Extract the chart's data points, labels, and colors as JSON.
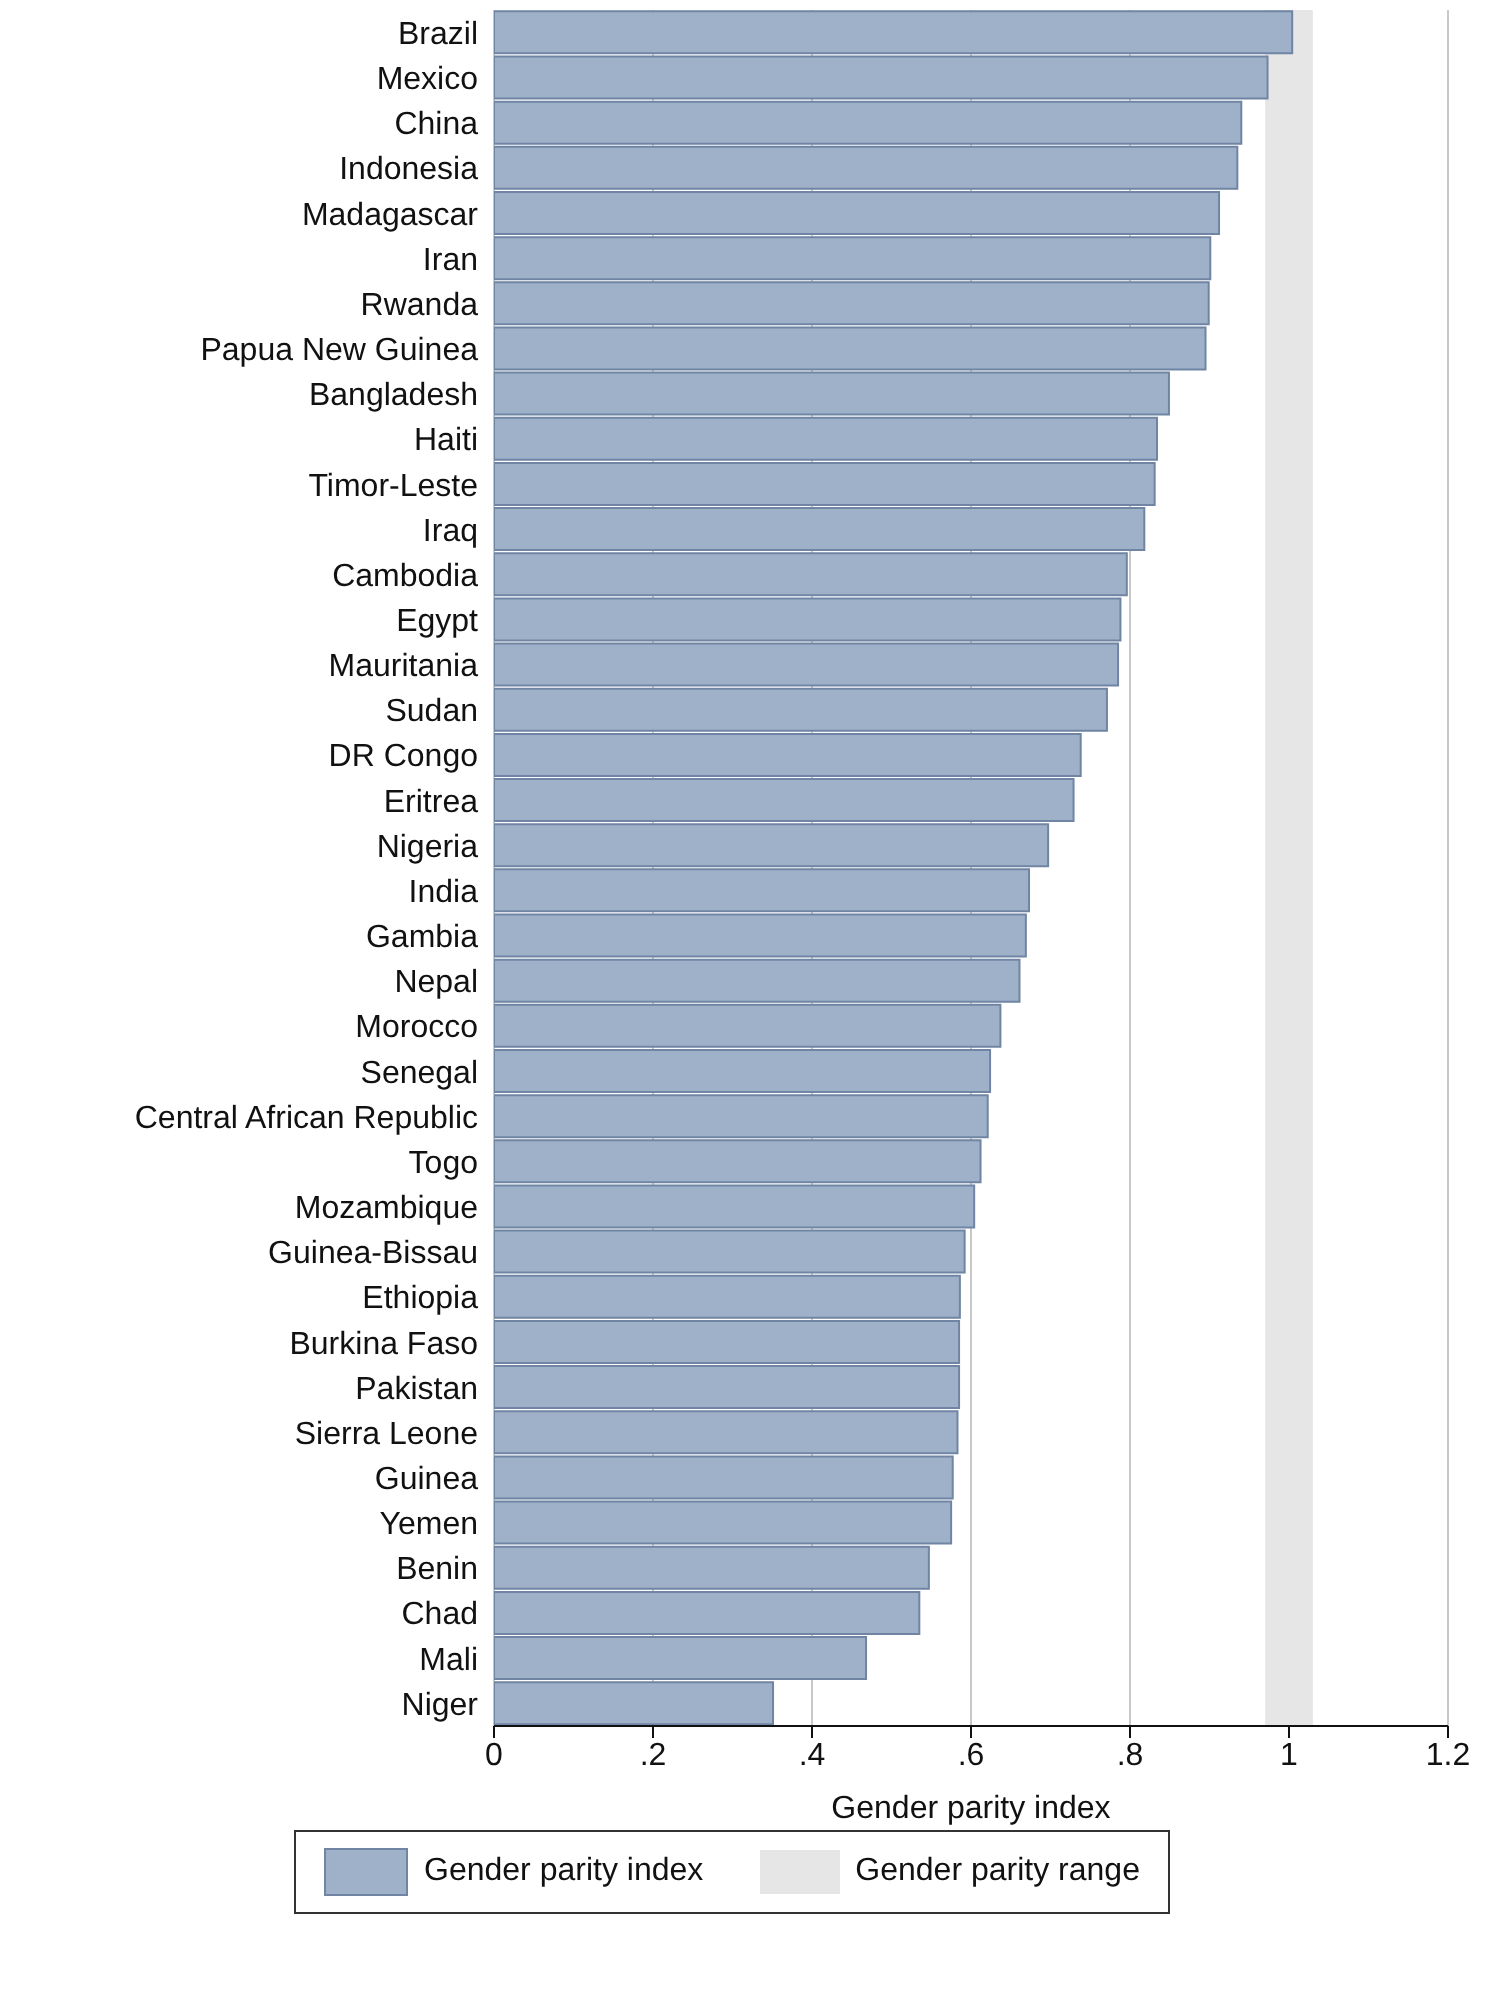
{
  "chart_data": {
    "type": "bar",
    "orientation": "horizontal",
    "xlabel": "Gender parity index",
    "categories": [
      "Brazil",
      "Mexico",
      "China",
      "Indonesia",
      "Madagascar",
      "Iran",
      "Rwanda",
      "Papua New Guinea",
      "Bangladesh",
      "Haiti",
      "Timor-Leste",
      "Iraq",
      "Cambodia",
      "Egypt",
      "Mauritania",
      "Sudan",
      "DR Congo",
      "Eritrea",
      "Nigeria",
      "India",
      "Gambia",
      "Nepal",
      "Morocco",
      "Senegal",
      "Central African Republic",
      "Togo",
      "Mozambique",
      "Guinea-Bissau",
      "Ethiopia",
      "Burkina Faso",
      "Pakistan",
      "Sierra Leone",
      "Guinea",
      "Yemen",
      "Benin",
      "Chad",
      "Mali",
      "Niger"
    ],
    "series": [
      {
        "name": "Gender parity index",
        "color": "#9fb1c9",
        "values": [
          1.004,
          0.973,
          0.94,
          0.935,
          0.912,
          0.901,
          0.899,
          0.895,
          0.849,
          0.834,
          0.831,
          0.818,
          0.796,
          0.788,
          0.785,
          0.771,
          0.738,
          0.729,
          0.697,
          0.673,
          0.669,
          0.661,
          0.637,
          0.624,
          0.621,
          0.612,
          0.604,
          0.592,
          0.586,
          0.585,
          0.585,
          0.583,
          0.577,
          0.575,
          0.547,
          0.535,
          0.468,
          0.351
        ]
      }
    ],
    "bands": [
      {
        "axis": "x",
        "from": 0.97,
        "to": 1.03,
        "label": "Gender parity range",
        "color": "#e6e6e6"
      }
    ],
    "xlim": [
      0,
      1.2
    ],
    "xticks": [
      0,
      {
        "value": 0.2,
        "label": ".2"
      },
      {
        "value": 0.4,
        "label": ".4"
      },
      {
        "value": 0.6,
        "label": ".6"
      },
      {
        "value": 0.8,
        "label": ".8"
      },
      1,
      {
        "value": 1.2,
        "label": "1.2"
      }
    ],
    "grid": "x",
    "legend": "bottom"
  }
}
